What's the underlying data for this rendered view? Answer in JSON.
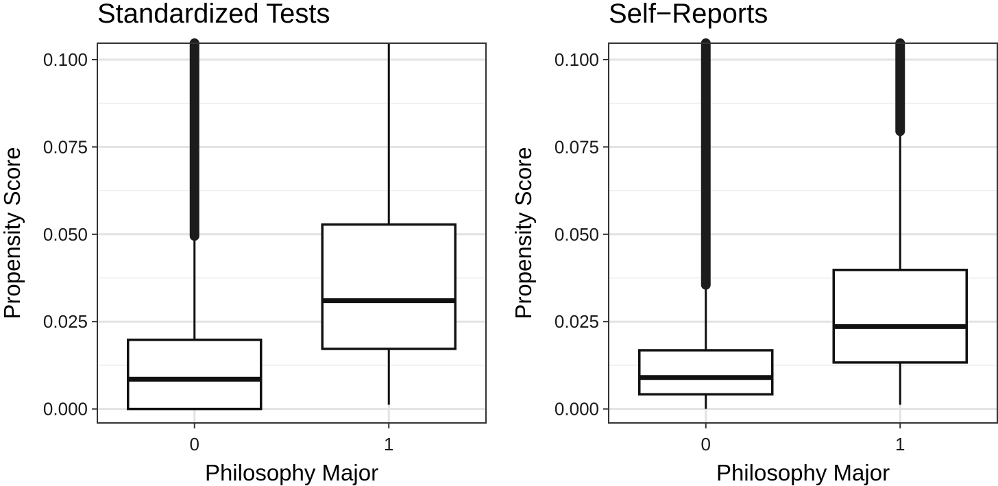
{
  "chart_data": [
    {
      "type": "boxplot",
      "title": "Standardized Tests",
      "xlabel": "Philosophy Major",
      "ylabel": "Propensity Score",
      "ylim": [
        -0.004,
        0.1047
      ],
      "yticks": [
        "0.000",
        "0.025",
        "0.050",
        "0.075",
        "0.100"
      ],
      "grid": true,
      "categories": [
        "0",
        "1"
      ],
      "boxes": [
        {
          "category": "0",
          "whisker_low": 0.0,
          "q1": 0.0,
          "median": 0.0085,
          "q3": 0.0198,
          "whisker_high": 0.0495,
          "outliers_from": 0.0495,
          "outliers_to": 0.1047
        },
        {
          "category": "1",
          "whisker_low": 0.0012,
          "q1": 0.0172,
          "median": 0.031,
          "q3": 0.0528,
          "whisker_high": 0.1047,
          "outliers_from": null,
          "outliers_to": null
        }
      ]
    },
    {
      "type": "boxplot",
      "title": "Self−Reports",
      "xlabel": "Philosophy Major",
      "ylabel": "Propensity Score",
      "ylim": [
        -0.004,
        0.1047
      ],
      "yticks": [
        "0.000",
        "0.025",
        "0.050",
        "0.075",
        "0.100"
      ],
      "grid": true,
      "categories": [
        "0",
        "1"
      ],
      "boxes": [
        {
          "category": "0",
          "whisker_low": 0.0,
          "q1": 0.0042,
          "median": 0.009,
          "q3": 0.0168,
          "whisker_high": 0.0355,
          "outliers_from": 0.0355,
          "outliers_to": 0.1047
        },
        {
          "category": "1",
          "whisker_low": 0.0012,
          "q1": 0.0133,
          "median": 0.0236,
          "q3": 0.0398,
          "whisker_high": 0.0795,
          "outliers_from": 0.0795,
          "outliers_to": 0.1047
        }
      ]
    }
  ]
}
